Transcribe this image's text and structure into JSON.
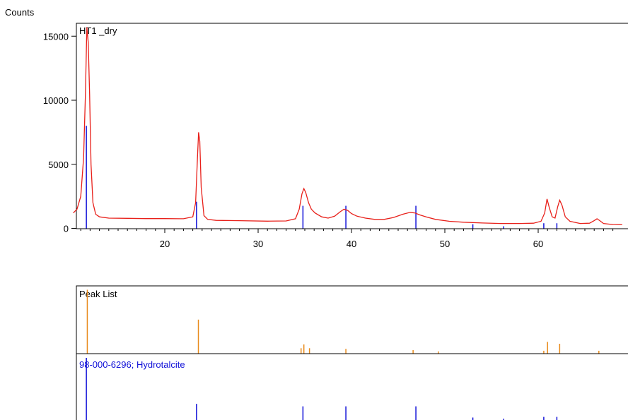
{
  "colors": {
    "pattern": "#e8201a",
    "reference": "#1010d8",
    "peaks": "#e88a1a",
    "frame": "#000000",
    "text": "#000000"
  },
  "chart_data": [
    {
      "type": "line",
      "title": "HT1 _dry",
      "ylabel": "Counts",
      "xlabel": "",
      "xlim": [
        10.2,
        69.0
      ],
      "ylim": [
        -200,
        16000
      ],
      "x_ticks": [
        20,
        30,
        40,
        50,
        60
      ],
      "y_ticks": [
        0,
        5000,
        10000,
        15000
      ],
      "x_tick_labels": [
        "20",
        "30",
        "40",
        "50",
        "60"
      ],
      "y_tick_labels": [
        "0",
        "5000",
        "10000",
        "15000"
      ],
      "grid": false,
      "series": [
        {
          "x": [
            10.2,
            10.6,
            11.0,
            11.3,
            11.5,
            11.65,
            11.8,
            11.95,
            12.1,
            12.3,
            12.6,
            13.0,
            14.0,
            16.0,
            18.0,
            20.0,
            22.0,
            23.0,
            23.3,
            23.5,
            23.62,
            23.75,
            23.9,
            24.2,
            24.6,
            25.5,
            28.0,
            31.0,
            33.0,
            34.0,
            34.4,
            34.7,
            34.9,
            35.1,
            35.4,
            35.7,
            36.1,
            36.8,
            37.5,
            38.2,
            38.8,
            39.2,
            39.6,
            40.0,
            40.6,
            41.5,
            42.5,
            43.5,
            44.5,
            45.5,
            46.3,
            46.8,
            47.3,
            48.0,
            49.0,
            50.5,
            52.0,
            54.0,
            56.0,
            58.0,
            59.5,
            60.3,
            60.7,
            60.95,
            61.2,
            61.5,
            61.8,
            62.1,
            62.3,
            62.55,
            62.9,
            63.4,
            64.5,
            65.5,
            66.0,
            66.3,
            66.6,
            67.0,
            68.0,
            69.0
          ],
          "y": [
            1200,
            1500,
            2500,
            5500,
            10500,
            15700,
            14500,
            10500,
            5000,
            2000,
            1100,
            900,
            800,
            780,
            760,
            760,
            750,
            900,
            2000,
            5500,
            7500,
            6800,
            3200,
            1000,
            700,
            620,
            600,
            560,
            580,
            750,
            1500,
            2700,
            3100,
            2800,
            2000,
            1500,
            1200,
            900,
            800,
            950,
            1300,
            1500,
            1400,
            1150,
            950,
            800,
            700,
            700,
            850,
            1100,
            1250,
            1200,
            1050,
            900,
            700,
            550,
            480,
            420,
            380,
            380,
            400,
            550,
            1200,
            2300,
            1600,
            900,
            800,
            1700,
            2200,
            1800,
            900,
            550,
            380,
            400,
            600,
            750,
            600,
            380,
            300,
            280
          ]
        }
      ]
    },
    {
      "type": "bar",
      "title": "Peak List",
      "x": [
        11.7,
        23.6,
        34.6,
        34.9,
        35.5,
        39.4,
        46.6,
        49.3,
        60.6,
        61.0,
        62.3,
        66.5
      ],
      "values": [
        1.0,
        0.53,
        0.08,
        0.14,
        0.08,
        0.07,
        0.05,
        0.03,
        0.04,
        0.18,
        0.15,
        0.04
      ],
      "ylim": [
        0,
        1
      ]
    },
    {
      "type": "bar",
      "title": "98-000-6296; Hydrotalcite",
      "x": [
        11.6,
        23.4,
        34.8,
        39.4,
        46.9,
        53.0,
        56.3,
        60.6,
        62.0
      ],
      "values": [
        1.0,
        0.26,
        0.22,
        0.22,
        0.22,
        0.04,
        0.02,
        0.05,
        0.05
      ],
      "ylim": [
        0,
        1
      ]
    }
  ]
}
